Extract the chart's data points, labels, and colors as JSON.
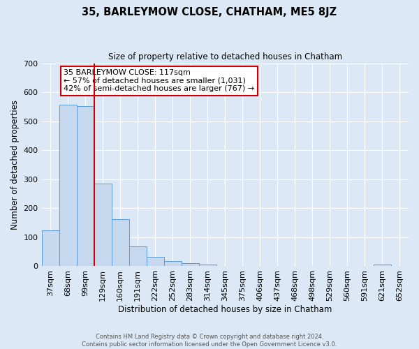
{
  "title": "35, BARLEYMOW CLOSE, CHATHAM, ME5 8JZ",
  "subtitle": "Size of property relative to detached houses in Chatham",
  "xlabel": "Distribution of detached houses by size in Chatham",
  "ylabel": "Number of detached properties",
  "bar_values": [
    125,
    558,
    553,
    285,
    162,
    68,
    33,
    18,
    10,
    5,
    0,
    0,
    0,
    0,
    0,
    0,
    0,
    0,
    0,
    6,
    0
  ],
  "tick_labels": [
    "37sqm",
    "68sqm",
    "99sqm",
    "129sqm",
    "160sqm",
    "191sqm",
    "222sqm",
    "252sqm",
    "283sqm",
    "314sqm",
    "345sqm",
    "375sqm",
    "406sqm",
    "437sqm",
    "468sqm",
    "498sqm",
    "529sqm",
    "560sqm",
    "591sqm",
    "621sqm",
    "652sqm"
  ],
  "bar_color": "#c5d8ed",
  "bar_edge_color": "#5b9bd5",
  "vline_color": "#cc0000",
  "ylim": [
    0,
    700
  ],
  "yticks": [
    0,
    100,
    200,
    300,
    400,
    500,
    600,
    700
  ],
  "annotation_text": "35 BARLEYMOW CLOSE: 117sqm\n← 57% of detached houses are smaller (1,031)\n42% of semi-detached houses are larger (767) →",
  "annotation_box_color": "#ffffff",
  "annotation_box_edge": "#cc0000",
  "footer_line1": "Contains HM Land Registry data © Crown copyright and database right 2024.",
  "footer_line2": "Contains public sector information licensed under the Open Government Licence v3.0.",
  "background_color": "#dce8f5",
  "grid_color": "#ffffff"
}
